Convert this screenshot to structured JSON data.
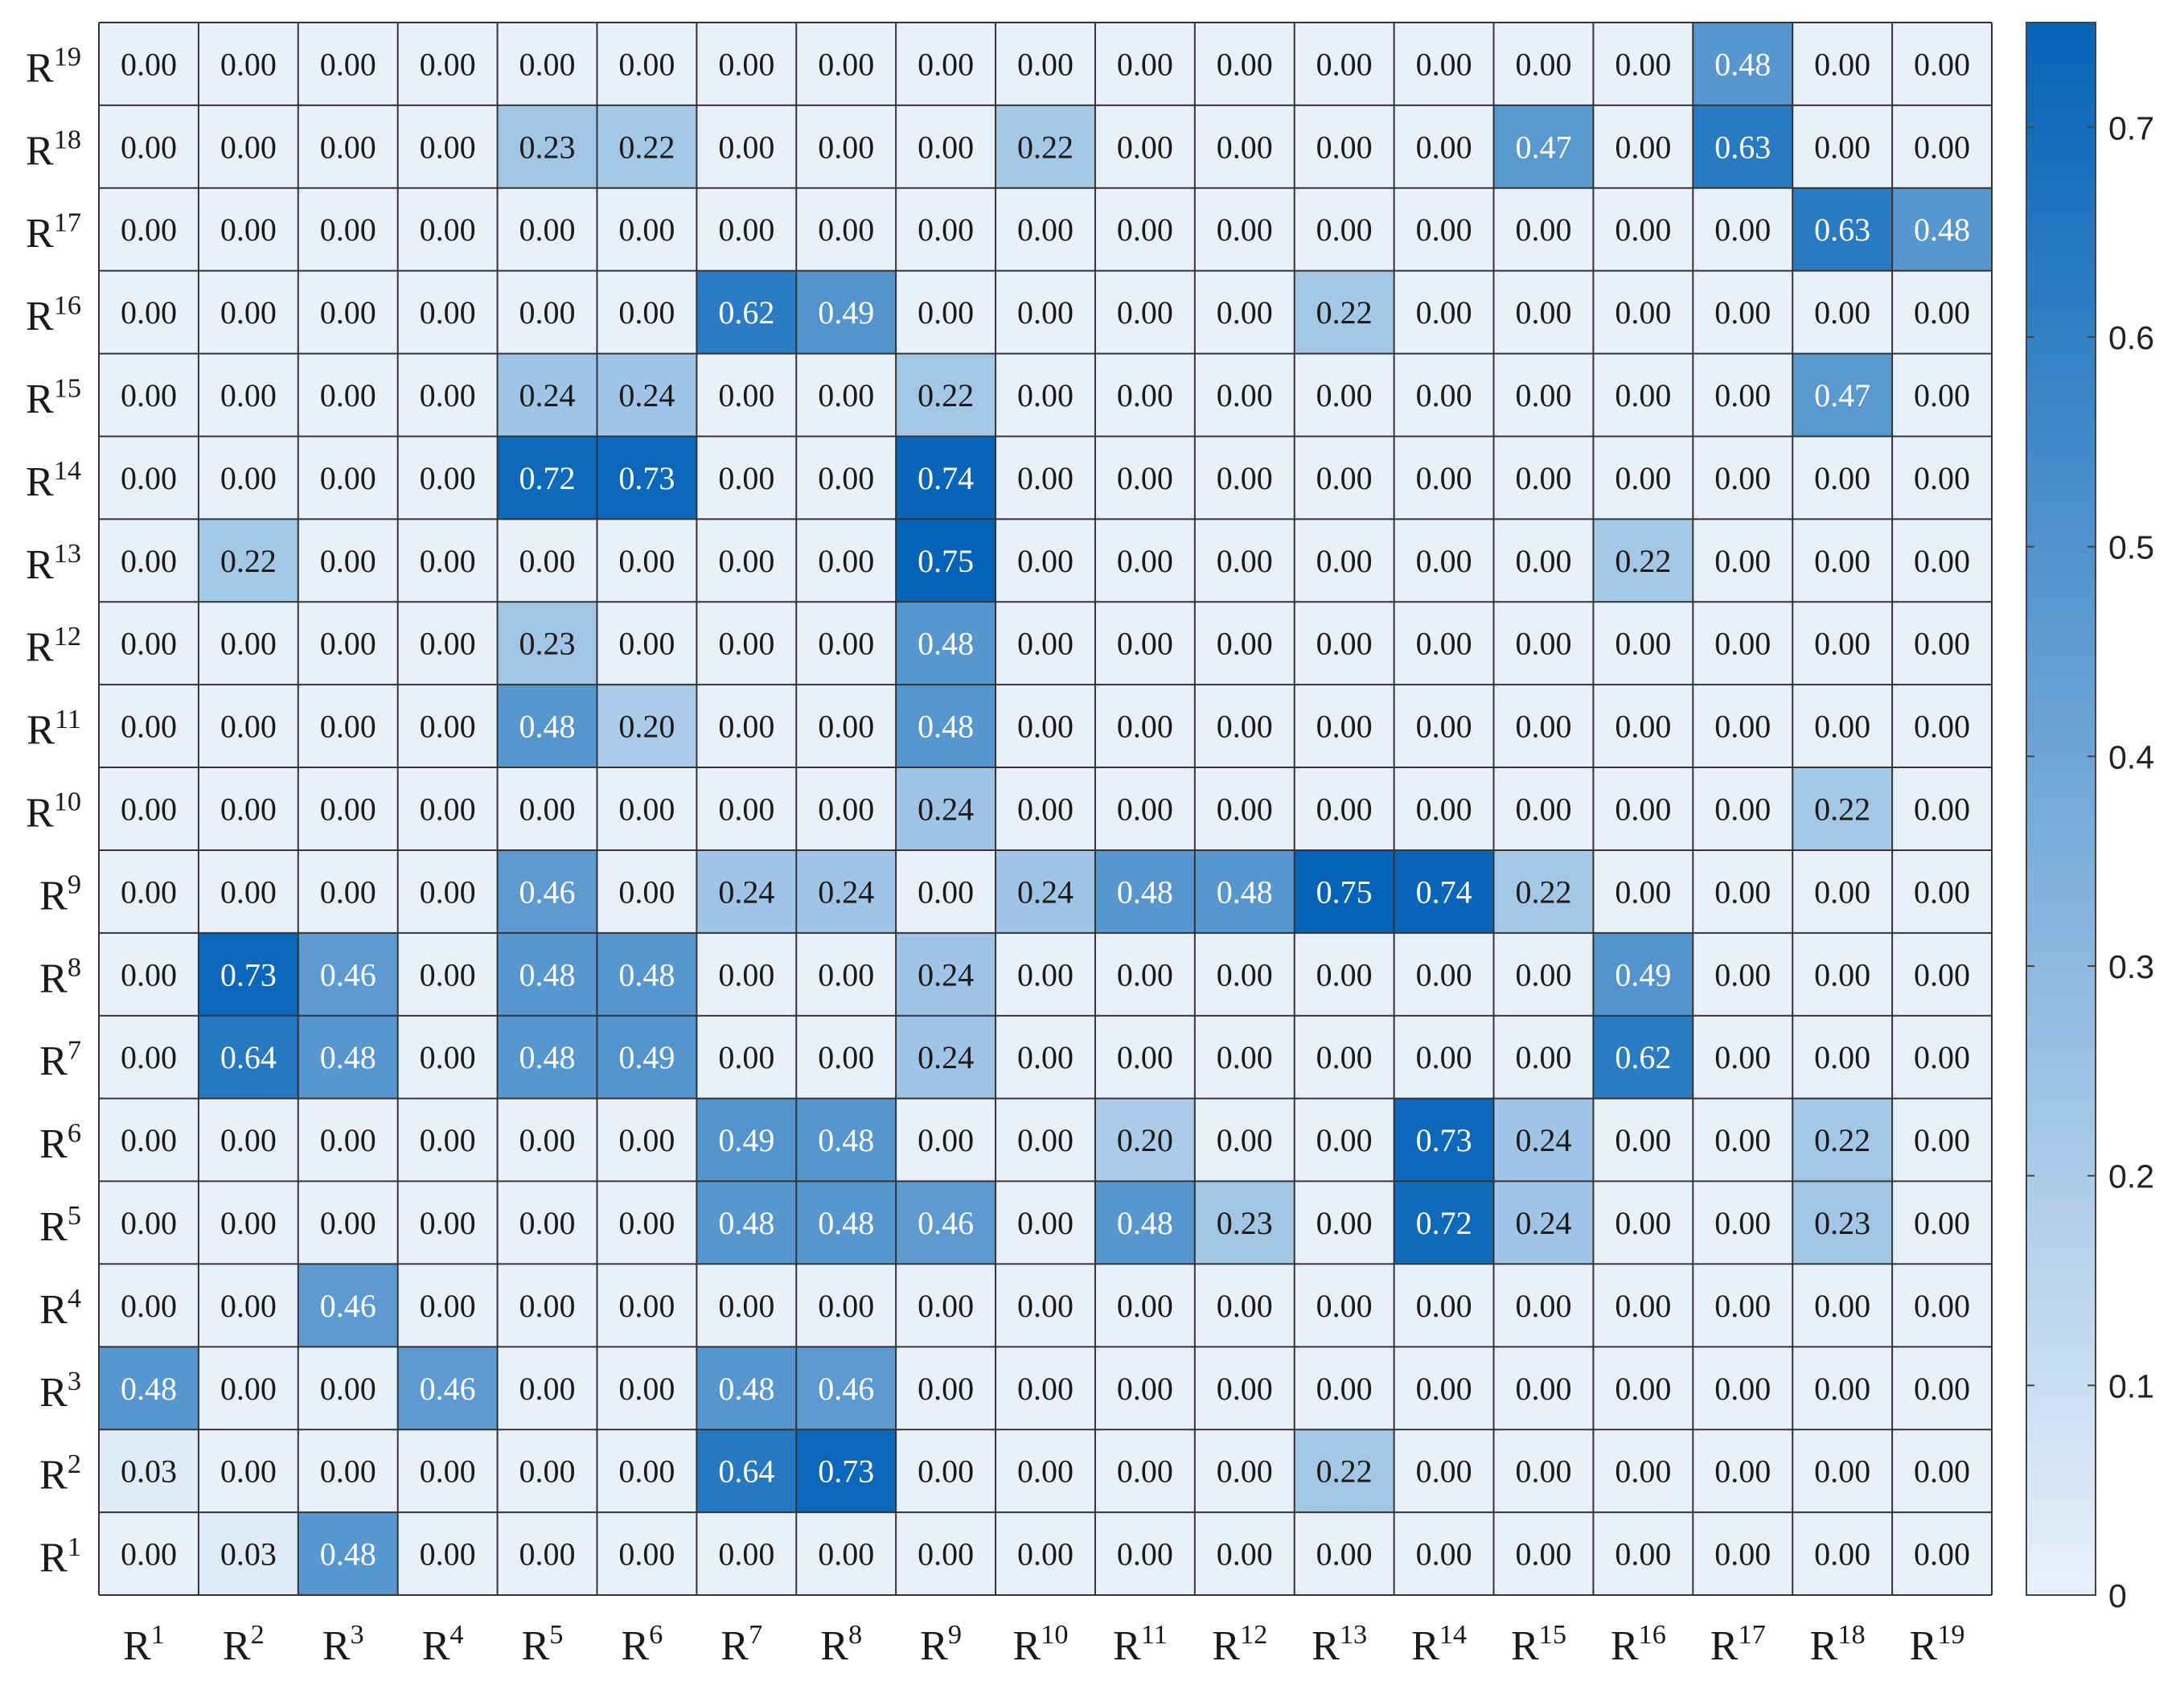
{
  "chart_data": {
    "type": "heatmap",
    "title": "",
    "xlabel": "",
    "ylabel": "",
    "x_labels": [
      {
        "base": "R",
        "sup": "1"
      },
      {
        "base": "R",
        "sup": "2"
      },
      {
        "base": "R",
        "sup": "3"
      },
      {
        "base": "R",
        "sup": "4"
      },
      {
        "base": "R",
        "sup": "5"
      },
      {
        "base": "R",
        "sup": "6"
      },
      {
        "base": "R",
        "sup": "7"
      },
      {
        "base": "R",
        "sup": "8"
      },
      {
        "base": "R",
        "sup": "9"
      },
      {
        "base": "R",
        "sup": "10"
      },
      {
        "base": "R",
        "sup": "11"
      },
      {
        "base": "R",
        "sup": "12"
      },
      {
        "base": "R",
        "sup": "13"
      },
      {
        "base": "R",
        "sup": "14"
      },
      {
        "base": "R",
        "sup": "15"
      },
      {
        "base": "R",
        "sup": "16"
      },
      {
        "base": "R",
        "sup": "17"
      },
      {
        "base": "R",
        "sup": "18"
      },
      {
        "base": "R",
        "sup": "19"
      }
    ],
    "y_labels": [
      {
        "base": "R",
        "sup": "19"
      },
      {
        "base": "R",
        "sup": "18"
      },
      {
        "base": "R",
        "sup": "17"
      },
      {
        "base": "R",
        "sup": "16"
      },
      {
        "base": "R",
        "sup": "15"
      },
      {
        "base": "R",
        "sup": "14"
      },
      {
        "base": "R",
        "sup": "13"
      },
      {
        "base": "R",
        "sup": "12"
      },
      {
        "base": "R",
        "sup": "11"
      },
      {
        "base": "R",
        "sup": "10"
      },
      {
        "base": "R",
        "sup": "9"
      },
      {
        "base": "R",
        "sup": "8"
      },
      {
        "base": "R",
        "sup": "7"
      },
      {
        "base": "R",
        "sup": "6"
      },
      {
        "base": "R",
        "sup": "5"
      },
      {
        "base": "R",
        "sup": "4"
      },
      {
        "base": "R",
        "sup": "3"
      },
      {
        "base": "R",
        "sup": "2"
      },
      {
        "base": "R",
        "sup": "1"
      }
    ],
    "values": [
      [
        0.0,
        0.0,
        0.0,
        0.0,
        0.0,
        0.0,
        0.0,
        0.0,
        0.0,
        0.0,
        0.0,
        0.0,
        0.0,
        0.0,
        0.0,
        0.0,
        0.48,
        0.0,
        0.0
      ],
      [
        0.0,
        0.0,
        0.0,
        0.0,
        0.23,
        0.22,
        0.0,
        0.0,
        0.0,
        0.22,
        0.0,
        0.0,
        0.0,
        0.0,
        0.47,
        0.0,
        0.63,
        0.0,
        0.0
      ],
      [
        0.0,
        0.0,
        0.0,
        0.0,
        0.0,
        0.0,
        0.0,
        0.0,
        0.0,
        0.0,
        0.0,
        0.0,
        0.0,
        0.0,
        0.0,
        0.0,
        0.0,
        0.63,
        0.48
      ],
      [
        0.0,
        0.0,
        0.0,
        0.0,
        0.0,
        0.0,
        0.62,
        0.49,
        0.0,
        0.0,
        0.0,
        0.0,
        0.22,
        0.0,
        0.0,
        0.0,
        0.0,
        0.0,
        0.0
      ],
      [
        0.0,
        0.0,
        0.0,
        0.0,
        0.24,
        0.24,
        0.0,
        0.0,
        0.22,
        0.0,
        0.0,
        0.0,
        0.0,
        0.0,
        0.0,
        0.0,
        0.0,
        0.47,
        0.0
      ],
      [
        0.0,
        0.0,
        0.0,
        0.0,
        0.72,
        0.73,
        0.0,
        0.0,
        0.74,
        0.0,
        0.0,
        0.0,
        0.0,
        0.0,
        0.0,
        0.0,
        0.0,
        0.0,
        0.0
      ],
      [
        0.0,
        0.22,
        0.0,
        0.0,
        0.0,
        0.0,
        0.0,
        0.0,
        0.75,
        0.0,
        0.0,
        0.0,
        0.0,
        0.0,
        0.0,
        0.22,
        0.0,
        0.0,
        0.0
      ],
      [
        0.0,
        0.0,
        0.0,
        0.0,
        0.23,
        0.0,
        0.0,
        0.0,
        0.48,
        0.0,
        0.0,
        0.0,
        0.0,
        0.0,
        0.0,
        0.0,
        0.0,
        0.0,
        0.0
      ],
      [
        0.0,
        0.0,
        0.0,
        0.0,
        0.48,
        0.2,
        0.0,
        0.0,
        0.48,
        0.0,
        0.0,
        0.0,
        0.0,
        0.0,
        0.0,
        0.0,
        0.0,
        0.0,
        0.0
      ],
      [
        0.0,
        0.0,
        0.0,
        0.0,
        0.0,
        0.0,
        0.0,
        0.0,
        0.24,
        0.0,
        0.0,
        0.0,
        0.0,
        0.0,
        0.0,
        0.0,
        0.0,
        0.22,
        0.0
      ],
      [
        0.0,
        0.0,
        0.0,
        0.0,
        0.46,
        0.0,
        0.24,
        0.24,
        0.0,
        0.24,
        0.48,
        0.48,
        0.75,
        0.74,
        0.22,
        0.0,
        0.0,
        0.0,
        0.0
      ],
      [
        0.0,
        0.73,
        0.46,
        0.0,
        0.48,
        0.48,
        0.0,
        0.0,
        0.24,
        0.0,
        0.0,
        0.0,
        0.0,
        0.0,
        0.0,
        0.49,
        0.0,
        0.0,
        0.0
      ],
      [
        0.0,
        0.64,
        0.48,
        0.0,
        0.48,
        0.49,
        0.0,
        0.0,
        0.24,
        0.0,
        0.0,
        0.0,
        0.0,
        0.0,
        0.0,
        0.62,
        0.0,
        0.0,
        0.0
      ],
      [
        0.0,
        0.0,
        0.0,
        0.0,
        0.0,
        0.0,
        0.49,
        0.48,
        0.0,
        0.0,
        0.2,
        0.0,
        0.0,
        0.73,
        0.24,
        0.0,
        0.0,
        0.22,
        0.0
      ],
      [
        0.0,
        0.0,
        0.0,
        0.0,
        0.0,
        0.0,
        0.48,
        0.48,
        0.46,
        0.0,
        0.48,
        0.23,
        0.0,
        0.72,
        0.24,
        0.0,
        0.0,
        0.23,
        0.0
      ],
      [
        0.0,
        0.0,
        0.46,
        0.0,
        0.0,
        0.0,
        0.0,
        0.0,
        0.0,
        0.0,
        0.0,
        0.0,
        0.0,
        0.0,
        0.0,
        0.0,
        0.0,
        0.0,
        0.0
      ],
      [
        0.48,
        0.0,
        0.0,
        0.46,
        0.0,
        0.0,
        0.48,
        0.46,
        0.0,
        0.0,
        0.0,
        0.0,
        0.0,
        0.0,
        0.0,
        0.0,
        0.0,
        0.0,
        0.0
      ],
      [
        0.03,
        0.0,
        0.0,
        0.0,
        0.0,
        0.0,
        0.64,
        0.73,
        0.0,
        0.0,
        0.0,
        0.0,
        0.22,
        0.0,
        0.0,
        0.0,
        0.0,
        0.0,
        0.0
      ],
      [
        0.0,
        0.03,
        0.48,
        0.0,
        0.0,
        0.0,
        0.0,
        0.0,
        0.0,
        0.0,
        0.0,
        0.0,
        0.0,
        0.0,
        0.0,
        0.0,
        0.0,
        0.0,
        0.0
      ]
    ],
    "value_format_decimals": 2,
    "color_range": [
      0,
      0.75
    ],
    "colormap": {
      "low": "#e8f1fa",
      "high": "#0563b7"
    },
    "text_color_dark": "#1a1a1a",
    "text_color_light": "#ffffff",
    "colorbar": {
      "ticks": [
        0,
        0.1,
        0.2,
        0.3,
        0.4,
        0.5,
        0.6,
        0.7
      ],
      "tick_labels": [
        "0",
        "0.1",
        "0.2",
        "0.3",
        "0.4",
        "0.5",
        "0.6",
        "0.7"
      ],
      "placement": "right"
    },
    "grid": true,
    "grid_color": "#333333"
  }
}
